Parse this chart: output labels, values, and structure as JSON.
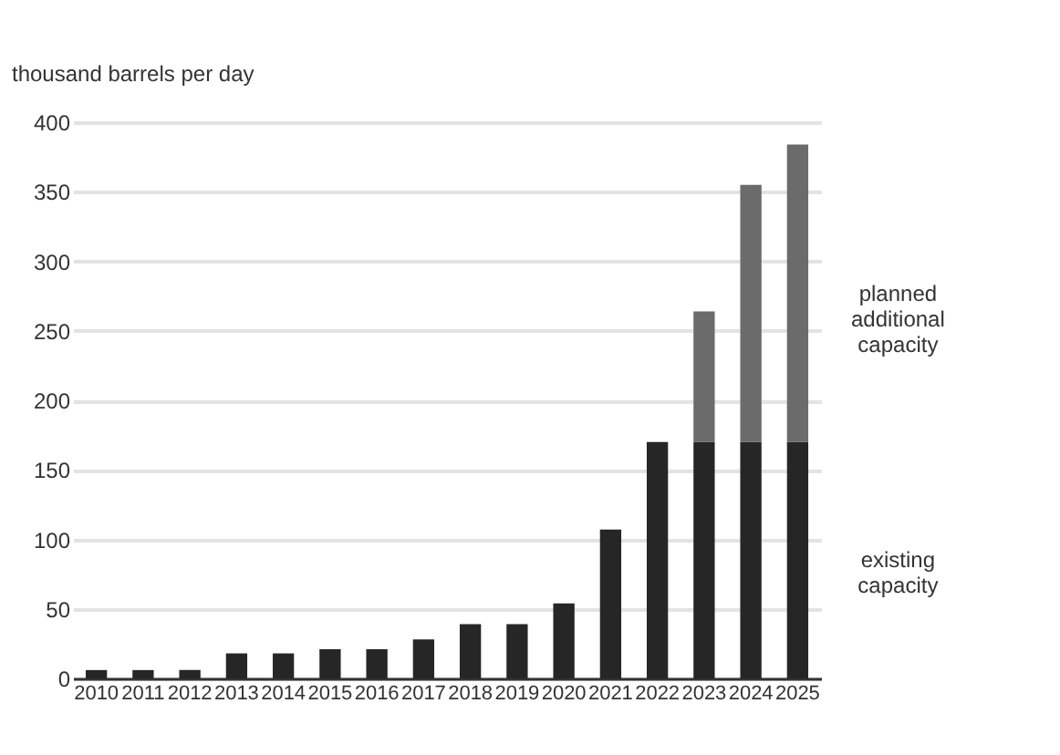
{
  "chart_data": {
    "type": "bar",
    "ylabel": "thousand barrels per day",
    "stacked": true,
    "grid": "y",
    "categories": [
      "2010",
      "2011",
      "2012",
      "2013",
      "2014",
      "2015",
      "2016",
      "2017",
      "2018",
      "2019",
      "2020",
      "2021",
      "2022",
      "2023",
      "2024",
      "2025"
    ],
    "series": [
      {
        "name": "existing capacity",
        "color": "#262626",
        "values": [
          6,
          6,
          6,
          18,
          18,
          21,
          21,
          28,
          39,
          39,
          54,
          107,
          170,
          170,
          170,
          170
        ]
      },
      {
        "name": "planned additional capacity",
        "color": "#6b6b6b",
        "values": [
          null,
          null,
          null,
          null,
          null,
          null,
          null,
          null,
          null,
          null,
          null,
          null,
          null,
          94,
          185,
          214
        ]
      }
    ],
    "ylim": [
      0,
      400
    ],
    "yticks": [
      0,
      50,
      100,
      150,
      200,
      250,
      300,
      350,
      400
    ]
  }
}
